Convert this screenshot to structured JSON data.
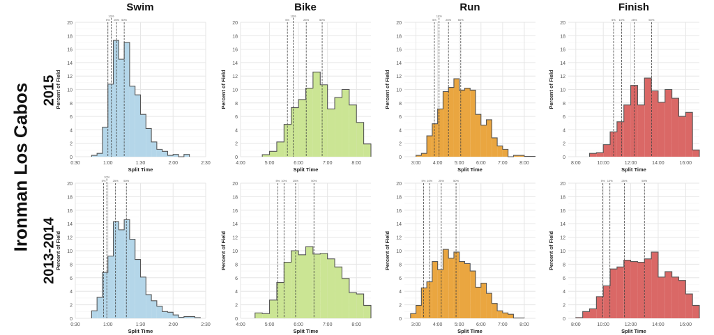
{
  "figure": {
    "main_label": "Ironman Los Cabos",
    "row_labels": [
      "2015",
      "2013-2014"
    ],
    "column_titles": [
      "Swim",
      "Bike",
      "Run",
      "Finish"
    ],
    "colors": {
      "Swim": "#b4d6e9",
      "Bike": "#cbe594",
      "Run": "#eaa640",
      "Finish": "#da6866",
      "outline": "#555555",
      "grid": "#e6e6e6"
    }
  },
  "chart_data": [
    {
      "type": "histogram",
      "column": "Swim",
      "row": "2015",
      "xlabel": "Split Time",
      "ylabel": "Percent of Field",
      "xlim": [
        "0:30",
        "2:30"
      ],
      "ylim": [
        0,
        20
      ],
      "yticks": [
        0,
        2,
        4,
        6,
        8,
        10,
        12,
        14,
        16,
        18,
        20
      ],
      "xticks": [
        "0:30",
        "1:00",
        "1:30",
        "2:00",
        "2:30"
      ],
      "grid": true,
      "bin_start": "0:45",
      "bin_width": "0:05",
      "values": [
        0.2,
        0.5,
        4.4,
        10.8,
        17.3,
        14.5,
        17.0,
        10.5,
        9.2,
        6.3,
        4.2,
        2.2,
        1.1,
        0.8,
        0.2,
        0.35,
        0,
        0.35
      ],
      "percentiles": [
        {
          "label": "5%",
          "x": "1:00"
        },
        {
          "label": "10%",
          "x": "1:03"
        },
        {
          "label": "25%",
          "x": "1:08"
        },
        {
          "label": "50%",
          "x": "1:15"
        }
      ]
    },
    {
      "type": "histogram",
      "column": "Bike",
      "row": "2015",
      "xlabel": "Split Time",
      "ylabel": "Percent of Field",
      "xlim": [
        "4:00",
        "8:30"
      ],
      "ylim": [
        0,
        20
      ],
      "yticks": [
        0,
        2,
        4,
        6,
        8,
        10,
        12,
        14,
        16,
        18,
        20
      ],
      "xticks": [
        "4:00",
        "5:00",
        "6:00",
        "7:00",
        "8:00"
      ],
      "grid": true,
      "bin_start": "4:45",
      "bin_width": "0:15",
      "values": [
        0.3,
        0.8,
        2.2,
        4.8,
        7.3,
        8.5,
        10.2,
        12.6,
        10.7,
        7.1,
        8.8,
        10.0,
        7.7,
        5.1,
        1.9
      ],
      "percentiles": [
        {
          "label": "5%",
          "x": "5:37"
        },
        {
          "label": "10%",
          "x": "5:49"
        },
        {
          "label": "25%",
          "x": "6:16"
        },
        {
          "label": "50%",
          "x": "6:49"
        }
      ]
    },
    {
      "type": "histogram",
      "column": "Run",
      "row": "2015",
      "xlabel": "Split Time",
      "ylabel": "Percent of Field",
      "xlim": [
        "2:28",
        "8:31"
      ],
      "ylim": [
        0,
        20
      ],
      "yticks": [
        0,
        2,
        4,
        6,
        8,
        10,
        12,
        14,
        16,
        18,
        20
      ],
      "xticks": [
        "3:00",
        "4:00",
        "5:00",
        "6:00",
        "7:00",
        "8:00"
      ],
      "grid": true,
      "bin_start": "3:00",
      "bin_width": "0:15",
      "values": [
        0.2,
        0.5,
        3.1,
        4.9,
        7.1,
        9.7,
        10.3,
        11.6,
        9.9,
        10.2,
        9.9,
        6.3,
        4.7,
        5.5,
        2.8,
        1.6,
        1.1,
        0,
        0.2,
        0.2,
        0.05,
        0.05
      ],
      "percentiles": [
        {
          "label": "5%",
          "x": "3:51"
        },
        {
          "label": "10%",
          "x": "4:04"
        },
        {
          "label": "25%",
          "x": "4:30"
        },
        {
          "label": "50%",
          "x": "5:04"
        }
      ]
    },
    {
      "type": "histogram",
      "column": "Finish",
      "row": "2015",
      "xlabel": "Split Time",
      "ylabel": "Percent of Field",
      "xlim": [
        "7:27",
        "17:00"
      ],
      "ylim": [
        0,
        20
      ],
      "yticks": [
        0,
        2,
        4,
        6,
        8,
        10,
        12,
        14,
        16,
        18,
        20
      ],
      "xticks": [
        "8:00",
        "10:00",
        "12:00",
        "14:00",
        "16:00"
      ],
      "grid": true,
      "bin_start": "9:00",
      "bin_width": "0:30",
      "values": [
        0.5,
        0.6,
        1.8,
        3.7,
        5.2,
        7.7,
        10.6,
        7.7,
        11.7,
        9.8,
        8.1,
        10.0,
        8.7,
        6.0,
        6.6,
        1.0
      ],
      "percentiles": [
        {
          "label": "5%",
          "x": "10:45"
        },
        {
          "label": "10%",
          "x": "11:20"
        },
        {
          "label": "25%",
          "x": "12:15"
        },
        {
          "label": "50%",
          "x": "13:31"
        }
      ]
    },
    {
      "type": "histogram",
      "column": "Swim",
      "row": "2013-2014",
      "xlabel": "Split Time",
      "ylabel": "Percent of Field",
      "xlim": [
        "0:30",
        "2:30"
      ],
      "ylim": [
        0,
        20
      ],
      "yticks": [
        0,
        2,
        4,
        6,
        8,
        10,
        12,
        14,
        16,
        18,
        20
      ],
      "xticks": [
        "0:30",
        "1:00",
        "1:30",
        "2:00",
        "2:30"
      ],
      "grid": true,
      "bin_start": "0:45",
      "bin_width": "0:05",
      "values": [
        1.1,
        3.1,
        6.8,
        9.2,
        14.3,
        13.1,
        14.6,
        11.7,
        8.7,
        6.1,
        3.5,
        2.6,
        1.8,
        1.0,
        0.9,
        0.5,
        0.15,
        0.25,
        0.25,
        0.1
      ],
      "percentiles": [
        {
          "label": "5%",
          "x": "0:56"
        },
        {
          "label": "10%",
          "x": "0:59"
        },
        {
          "label": "25%",
          "x": "1:07"
        },
        {
          "label": "50%",
          "x": "1:17"
        }
      ]
    },
    {
      "type": "histogram",
      "column": "Bike",
      "row": "2013-2014",
      "xlabel": "Split Time",
      "ylabel": "Percent of Field",
      "xlim": [
        "4:00",
        "8:30"
      ],
      "ylim": [
        0,
        20
      ],
      "yticks": [
        0,
        2,
        4,
        6,
        8,
        10,
        12,
        14,
        16,
        18,
        20
      ],
      "xticks": [
        "4:00",
        "5:00",
        "6:00",
        "7:00",
        "8:00"
      ],
      "grid": true,
      "bin_start": "4:30",
      "bin_width": "0:15",
      "values": [
        0.8,
        0.7,
        2.7,
        5.3,
        8.3,
        10.0,
        9.4,
        10.6,
        9.5,
        9.6,
        8.8,
        7.6,
        5.9,
        3.8,
        3.6,
        1.9
      ],
      "percentiles": [
        {
          "label": "5%",
          "x": "5:17"
        },
        {
          "label": "10%",
          "x": "5:30"
        },
        {
          "label": "25%",
          "x": "5:54"
        },
        {
          "label": "50%",
          "x": "6:32"
        }
      ]
    },
    {
      "type": "histogram",
      "column": "Run",
      "row": "2013-2014",
      "xlabel": "Split Time",
      "ylabel": "Percent of Field",
      "xlim": [
        "2:28",
        "8:31"
      ],
      "ylim": [
        0,
        20
      ],
      "yticks": [
        0,
        2,
        4,
        6,
        8,
        10,
        12,
        14,
        16,
        18,
        20
      ],
      "xticks": [
        "3:00",
        "4:00",
        "5:00",
        "6:00",
        "7:00",
        "8:00"
      ],
      "grid": true,
      "bin_start": "2:45",
      "bin_width": "0:15",
      "values": [
        0.7,
        1.9,
        4.5,
        5.4,
        8.4,
        7.2,
        10.2,
        8.9,
        9.8,
        8.4,
        8.1,
        7.0,
        4.6,
        5.2,
        3.7,
        2.2,
        1.1,
        0.8,
        0.6,
        0.05,
        0.05
      ],
      "percentiles": [
        {
          "label": "5%",
          "x": "3:21"
        },
        {
          "label": "10%",
          "x": "3:38"
        },
        {
          "label": "25%",
          "x": "4:10"
        },
        {
          "label": "50%",
          "x": "4:51"
        }
      ]
    },
    {
      "type": "histogram",
      "column": "Finish",
      "row": "2013-2014",
      "xlabel": "Split Time",
      "ylabel": "Percent of Field",
      "xlim": [
        "7:27",
        "17:00"
      ],
      "ylim": [
        0,
        20
      ],
      "yticks": [
        0,
        2,
        4,
        6,
        8,
        10,
        12,
        14,
        16,
        18,
        20
      ],
      "xticks": [
        "8:00",
        "10:00",
        "12:00",
        "14:00",
        "16:00"
      ],
      "grid": true,
      "bin_start": "8:00",
      "bin_width": "0:30",
      "values": [
        0.1,
        1.0,
        1.4,
        3.2,
        4.8,
        7.3,
        7.6,
        8.6,
        8.4,
        8.3,
        8.8,
        9.8,
        6.1,
        6.9,
        6.1,
        5.6,
        3.6,
        1.9
      ],
      "percentiles": [
        {
          "label": "5%",
          "x": "9:58"
        },
        {
          "label": "10%",
          "x": "10:29"
        },
        {
          "label": "25%",
          "x": "11:32"
        },
        {
          "label": "50%",
          "x": "13:00"
        }
      ]
    }
  ]
}
